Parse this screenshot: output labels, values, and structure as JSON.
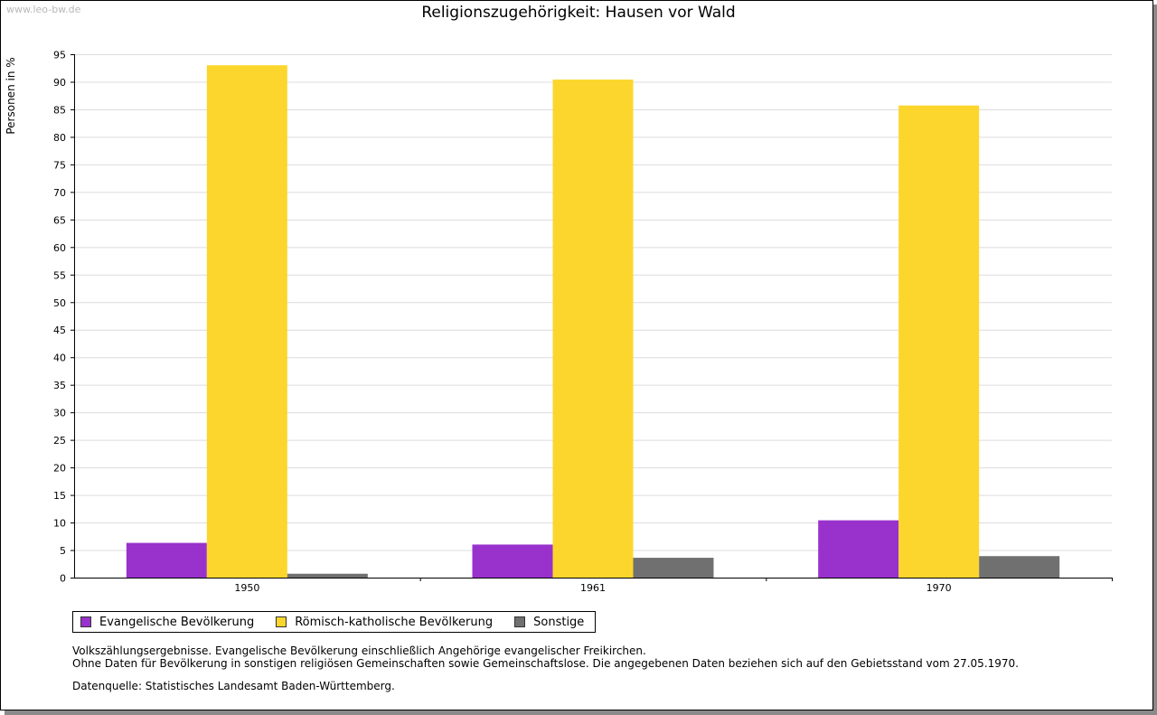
{
  "watermark": "www.leo-bw.de",
  "chart_data": {
    "type": "bar",
    "title": "Religionszugehörigkeit: Hausen vor Wald",
    "ylabel": "Personen in %",
    "xlabel": "",
    "ylim": [
      0,
      95
    ],
    "ytick_step": 5,
    "grid": true,
    "legend_position": "bottom-left",
    "categories": [
      "1950",
      "1961",
      "1970"
    ],
    "series": [
      {
        "name": "Evangelische Bevölkerung",
        "color": "#9932cc",
        "values": [
          6.3,
          6.0,
          10.4
        ]
      },
      {
        "name": "Römisch-katholische Bevölkerung",
        "color": "#fcd62d",
        "values": [
          93.0,
          90.4,
          85.7
        ]
      },
      {
        "name": "Sonstige",
        "color": "#707070",
        "values": [
          0.7,
          3.6,
          3.9
        ]
      }
    ]
  },
  "notes": [
    "Volkszählungsergebnisse. Evangelische Bevölkerung einschließlich Angehörige evangelischer Freikirchen.",
    "Ohne Daten für Bevölkerung in sonstigen religiösen Gemeinschaften sowie Gemeinschaftslose. Die angegebenen Daten beziehen sich auf den Gebietsstand vom 27.05.1970."
  ],
  "source": "Datenquelle: Statistisches Landesamt Baden-Württemberg."
}
